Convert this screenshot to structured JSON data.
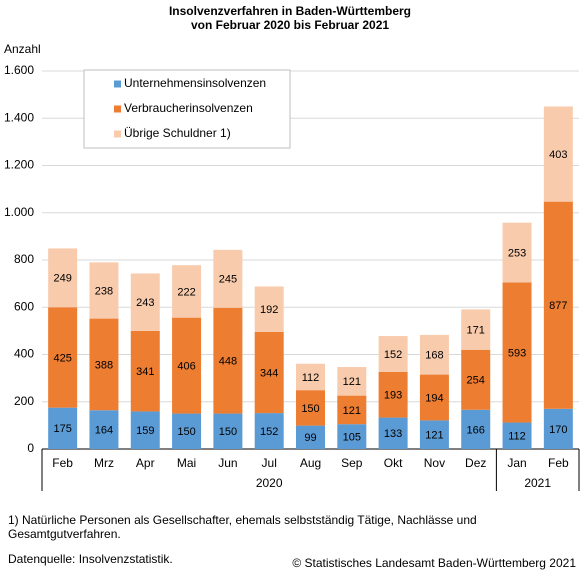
{
  "chart_data": {
    "type": "stacked_bar",
    "title": "Insolvenzverfahren in Baden-Württemberg",
    "subtitle": "von Februar 2020 bis Februar 2021",
    "y_label": "Anzahl",
    "categories": [
      "Feb",
      "Mrz",
      "Apr",
      "Mai",
      "Jun",
      "Jul",
      "Aug",
      "Sep",
      "Okt",
      "Nov",
      "Dez",
      "Jan",
      "Feb"
    ],
    "groups": [
      {
        "label": "2020",
        "count": 11
      },
      {
        "label": "2021",
        "count": 2
      }
    ],
    "series": [
      {
        "name": "Unternehmensinsolvenzen",
        "color": "#5b9bd5",
        "values": [
          175,
          164,
          159,
          150,
          150,
          152,
          99,
          105,
          133,
          121,
          166,
          112,
          170
        ]
      },
      {
        "name": "Verbraucherinsolvenzen",
        "color": "#ed7d31",
        "values": [
          425,
          388,
          341,
          406,
          448,
          344,
          150,
          121,
          193,
          194,
          254,
          593,
          877
        ]
      },
      {
        "name": "Übrige Schuldner 1)",
        "color": "#f8cbad",
        "values": [
          249,
          238,
          243,
          222,
          245,
          192,
          112,
          121,
          152,
          168,
          171,
          253,
          403
        ]
      }
    ],
    "ylim": [
      0,
      1600
    ],
    "yticks": [
      0,
      200,
      400,
      600,
      800,
      {
        "value": 1000,
        "label": "1.000"
      },
      {
        "value": 1200,
        "label": "1.200"
      },
      {
        "value": 1400,
        "label": "1.400"
      },
      {
        "value": 1600,
        "label": "1.600"
      }
    ],
    "grid": true,
    "legend": "upper left",
    "footnote": [
      "1) Natürliche Personen als Gesellschafter, ehemals selbstständig Tätige, Nachlässe und",
      "Gesamtgutverfahren."
    ],
    "source": "Datenquelle: Insolvenzstatistik.",
    "copyright": "© Statistisches Landesamt Baden-Württemberg 2021"
  }
}
